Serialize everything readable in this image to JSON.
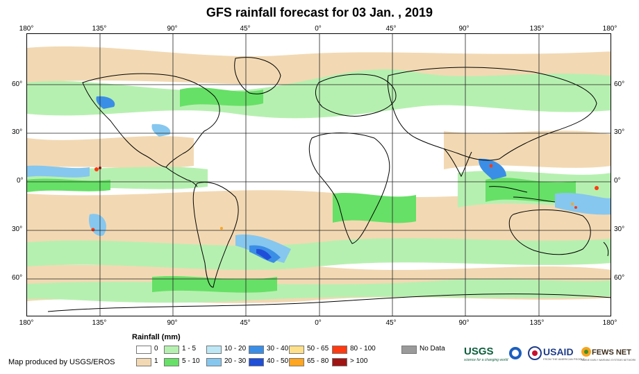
{
  "title": "GFS rainfall forecast for 03 Jan. , 2019",
  "lon_ticks": [
    "180°",
    "135°",
    "90°",
    "45°",
    "0°",
    "45°",
    "90°",
    "135°",
    "180°"
  ],
  "lat_ticks": [
    "60°",
    "30°",
    "0°",
    "30°",
    "60°"
  ],
  "legend": {
    "title": "Rainfall (mm)",
    "items": [
      {
        "label": "0",
        "color": "#ffffff"
      },
      {
        "label": "1",
        "color": "#f2d9b3"
      },
      {
        "label": "1 - 5",
        "color": "#b6f0b0"
      },
      {
        "label": "5 - 10",
        "color": "#66e066"
      },
      {
        "label": "10 - 20",
        "color": "#bde7f5"
      },
      {
        "label": "20 - 30",
        "color": "#86c7ef"
      },
      {
        "label": "30 - 40",
        "color": "#3b8ee6"
      },
      {
        "label": "40 - 50",
        "color": "#1f4fd8"
      },
      {
        "label": "50 - 65",
        "color": "#ffe08a"
      },
      {
        "label": "65 - 80",
        "color": "#ffa51f"
      },
      {
        "label": "80 - 100",
        "color": "#ff3a12"
      },
      {
        "label": "> 100",
        "color": "#a01414"
      },
      {
        "label": "No Data",
        "color": "#9a9a9a"
      }
    ]
  },
  "credit": "Map produced by USGS/EROS",
  "logos": {
    "usgs": "USGS",
    "usgs_tagline": "science for a changing world",
    "usaid": "USAID",
    "usaid_tagline": "FROM THE AMERICAN PEOPLE",
    "fews": "FEWS NET",
    "fews_tagline": "FAMINE EARLY WARNING SYSTEMS NETWORK"
  }
}
